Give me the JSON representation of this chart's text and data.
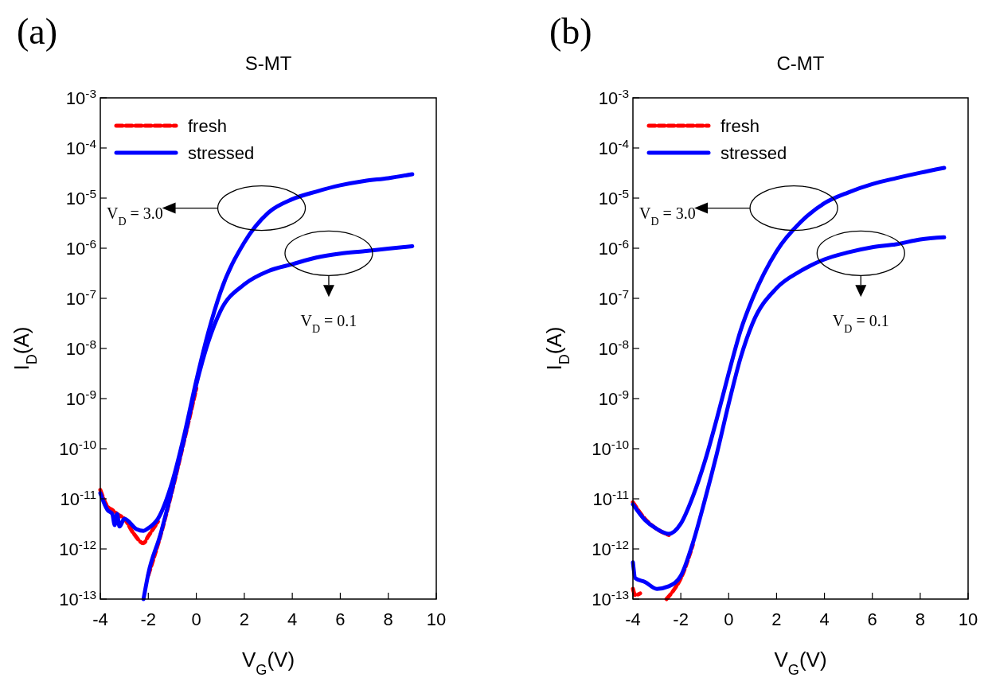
{
  "chart_data": [
    {
      "type": "line",
      "title": "S-MT",
      "xlabel": "V$_{G}$(V)",
      "ylabel": "I$_{D}$(A)",
      "log": "y",
      "grid": false,
      "legend": "top left",
      "xlim": [
        -4,
        10
      ],
      "xticks": [
        -4,
        -2,
        0,
        2,
        4,
        6,
        8,
        10
      ],
      "ylim": [
        1e-13,
        0.001
      ],
      "yticks": [
        {
          "value": 1e-13,
          "label": "10$^{-13}$"
        },
        {
          "value": 1e-12,
          "label": "10$^{-12}$"
        },
        {
          "value": 1e-11,
          "label": "10$^{-11}$"
        },
        {
          "value": 1e-10,
          "label": "10$^{-10}$"
        },
        {
          "value": 1e-09,
          "label": "10$^{-9}$"
        },
        {
          "value": 1e-08,
          "label": "10$^{-8}$"
        },
        {
          "value": 1e-07,
          "label": "10$^{-7}$"
        },
        {
          "value": 1e-06,
          "label": "10$^{-6}$"
        },
        {
          "value": 1e-05,
          "label": "10$^{-5}$"
        },
        {
          "value": 0.0001,
          "label": "10$^{-4}$"
        },
        {
          "value": 0.001,
          "label": "10$^{-3}$"
        }
      ],
      "annotations": [
        "(a)",
        "V$_{D}$ = 3.0",
        "V$_{D}$ = 0.1"
      ],
      "series": [
        {
          "name": "fresh",
          "color": "#ff0000",
          "line_style": "dashed",
          "x": [
            -4,
            -3.7,
            -3.5,
            -3.3,
            -3,
            -2.6,
            -2.2,
            -2,
            -1.6
          ],
          "values": [
            1.5e-11,
            7e-12,
            6e-12,
            5e-12,
            4e-12,
            2e-12,
            1.3e-12,
            1.8e-12,
            3.5e-12
          ]
        },
        {
          "color": "#ff0000",
          "line_style": "dashed",
          "x": [
            -2,
            -1.5,
            -1,
            -0.5,
            0
          ],
          "values": [
            3e-13,
            1.8e-12,
            1.5e-11,
            1.5e-10,
            1.6e-09
          ]
        },
        {
          "name": "stressed",
          "color": "#0000ff",
          "line_style": "solid",
          "x": [
            -4,
            -3.7,
            -3.5,
            -3.4,
            -3.3,
            -3.2,
            -3,
            -2.5,
            -2.2,
            -2,
            -1.6,
            -1,
            -0.5,
            0,
            0.5,
            1,
            2,
            3,
            4,
            5,
            6,
            7,
            8,
            9
          ],
          "values": [
            1.3e-11,
            6e-12,
            5e-12,
            3e-12,
            5e-12,
            2.8e-12,
            4e-12,
            2.5e-12,
            2.3e-12,
            2.6e-12,
            4e-12,
            2.2e-11,
            1.9e-10,
            2.3e-09,
            2.1e-08,
            1.3e-07,
            1.3e-06,
            5.1e-06,
            9.5e-06,
            1.35e-05,
            1.8e-05,
            2.2e-05,
            2.5e-05,
            3e-05
          ]
        },
        {
          "color": "#0000ff",
          "line_style": "solid",
          "x": [
            -2.2,
            -2,
            -1.5,
            -1,
            -0.5,
            0,
            0.5,
            1,
            2,
            3,
            4,
            5,
            6,
            7,
            8,
            9
          ],
          "values": [
            1e-13,
            3.2e-13,
            1.9e-12,
            1.6e-11,
            1.6e-10,
            1.9e-09,
            1.35e-08,
            5.5e-08,
            1.9e-07,
            3.5e-07,
            4.8e-07,
            6.5e-07,
            7.8e-07,
            8.7e-07,
            9.8e-07,
            1.1e-06
          ]
        }
      ]
    },
    {
      "type": "line",
      "title": "C-MT",
      "xlabel": "V$_{G}$(V)",
      "ylabel": "I$_{D}$(A)",
      "log": "y",
      "grid": false,
      "legend": "top left",
      "xlim": [
        -4,
        10
      ],
      "xticks": [
        -4,
        -2,
        0,
        2,
        4,
        6,
        8,
        10
      ],
      "ylim": [
        1e-13,
        0.001
      ],
      "yticks": [
        {
          "value": 1e-13,
          "label": "10$^{-13}$"
        },
        {
          "value": 1e-12,
          "label": "10$^{-12}$"
        },
        {
          "value": 1e-11,
          "label": "10$^{-11}$"
        },
        {
          "value": 1e-10,
          "label": "10$^{-10}$"
        },
        {
          "value": 1e-09,
          "label": "10$^{-9}$"
        },
        {
          "value": 1e-08,
          "label": "10$^{-8}$"
        },
        {
          "value": 1e-07,
          "label": "10$^{-7}$"
        },
        {
          "value": 1e-06,
          "label": "10$^{-6}$"
        },
        {
          "value": 1e-05,
          "label": "10$^{-5}$"
        },
        {
          "value": 0.0001,
          "label": "10$^{-4}$"
        },
        {
          "value": 0.001,
          "label": "10$^{-3}$"
        }
      ],
      "annotations": [
        "(b)",
        "V$_{D}$ = 3.0",
        "V$_{D}$ = 0.1"
      ],
      "series": [
        {
          "name": "fresh",
          "color": "#ff0000",
          "line_style": "dashed",
          "x": [
            -4,
            -3.5,
            -3,
            -2.5
          ],
          "values": [
            8.5e-12,
            4e-12,
            2.5e-12,
            1.9e-12
          ]
        },
        {
          "color": "#ff0000",
          "line_style": "dashed",
          "x": [
            -4,
            -3.9,
            -3.7,
            -3.2,
            -2.6,
            -2.3,
            -2,
            -1.5
          ],
          "values": [
            1.6e-13,
            1.2e-13,
            1.3e-13,
            null,
            1e-13,
            1.5e-13,
            2.6e-13,
            1.2e-12
          ]
        },
        {
          "name": "stressed",
          "color": "#0000ff",
          "line_style": "solid",
          "x": [
            -4,
            -3.5,
            -3,
            -2.5,
            -2,
            -1.5,
            -1,
            -0.5,
            0,
            0.5,
            1,
            2,
            3,
            4,
            5,
            6,
            7,
            8,
            9
          ],
          "values": [
            7.8e-12,
            3.8e-12,
            2.5e-12,
            2e-12,
            3.2e-12,
            1.1e-11,
            5.5e-11,
            3.9e-10,
            3.2e-09,
            2.3e-08,
            1e-07,
            8.7e-07,
            3.3e-06,
            7.9e-06,
            1.3e-05,
            1.9e-05,
            2.5e-05,
            3.2e-05,
            4e-05
          ]
        },
        {
          "color": "#0000ff",
          "line_style": "solid",
          "x": [
            -4,
            -3.9,
            -3.5,
            -3,
            -2.5,
            -2,
            -1.5,
            -1,
            -0.5,
            0,
            0.5,
            1,
            2,
            3,
            4,
            5,
            6,
            7,
            8,
            9
          ],
          "values": [
            5.4e-13,
            2.6e-13,
            2.2e-13,
            1.6e-13,
            1.8e-13,
            2.9e-13,
            1.3e-12,
            9.3e-12,
            7.8e-11,
            7.9e-10,
            6.6e-09,
            3.2e-08,
            1.6e-07,
            3.5e-07,
            6e-07,
            8.3e-07,
            1.05e-06,
            1.2e-06,
            1.5e-06,
            1.65e-06
          ]
        }
      ]
    }
  ]
}
